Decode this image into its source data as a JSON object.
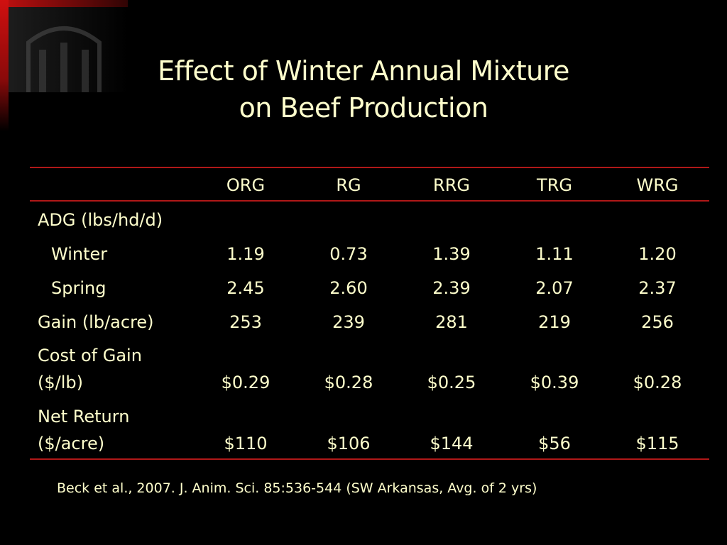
{
  "slide": {
    "title_line1": "Effect of Winter Annual Mixture",
    "title_line2": "on Beef Production",
    "citation": "Beck et al., 2007. J. Anim. Sci. 85:536-544 (SW Arkansas, Avg. of 2 yrs)"
  },
  "table": {
    "columns": [
      "ORG",
      "RG",
      "RRG",
      "TRG",
      "WRG"
    ],
    "section_adg": "ADG (lbs/hd/d)",
    "rows": [
      {
        "label": "Winter",
        "values": [
          "1.19",
          "0.73",
          "1.39",
          "1.11",
          "1.20"
        ]
      },
      {
        "label": "Spring",
        "values": [
          "2.45",
          "2.60",
          "2.39",
          "2.07",
          "2.37"
        ]
      },
      {
        "label": "Gain (lb/acre)",
        "values": [
          "253",
          "239",
          "281",
          "219",
          "256"
        ]
      },
      {
        "label_line1": "Cost of Gain",
        "label_line2": "($/lb)",
        "values": [
          "$0.29",
          "$0.28",
          "$0.25",
          "$0.39",
          "$0.28"
        ]
      },
      {
        "label_line1": "Net Return",
        "label_line2": "($/acre)",
        "values": [
          "$110",
          "$106",
          "$144",
          "$56",
          "$115"
        ]
      }
    ]
  },
  "colors": {
    "background": "#000000",
    "text": "#ffffcc",
    "rule": "#b01818",
    "corner_accent": "#d01010"
  }
}
